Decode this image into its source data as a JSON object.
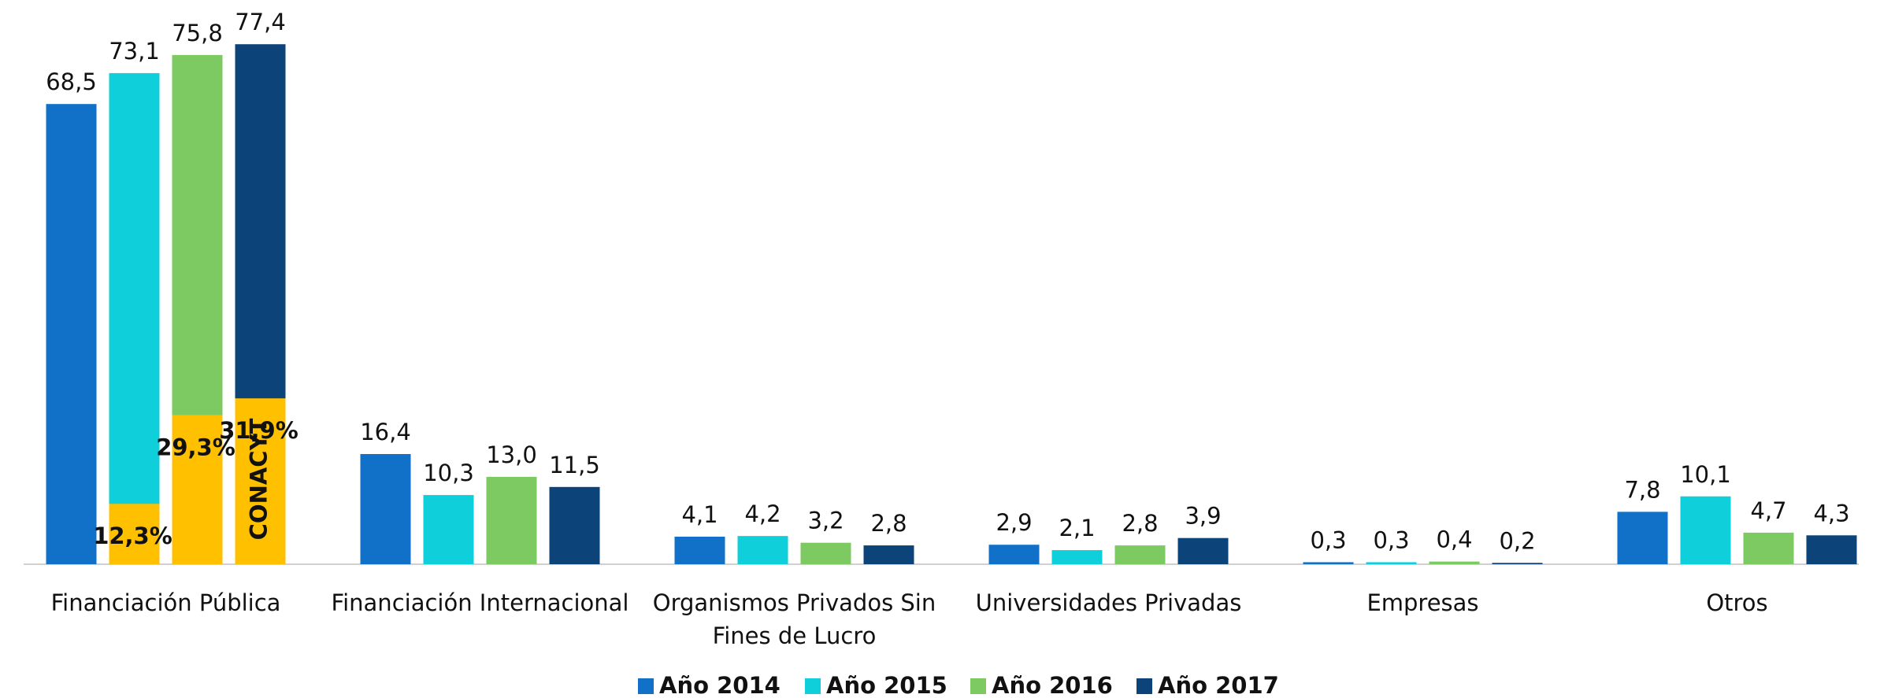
{
  "chart_data": {
    "type": "bar",
    "categories": [
      "Financiación Pública",
      "Financiación Internacional",
      "Organismos Privados Sin Fines de Lucro",
      "Universidades Privadas",
      "Empresas",
      "Otros"
    ],
    "series": [
      {
        "name": "Año 2014",
        "color": "#1170c8",
        "values": [
          68.5,
          16.4,
          4.1,
          2.9,
          0.3,
          7.8
        ],
        "value_labels": [
          "68,5",
          "16,4",
          "4,1",
          "2,9",
          "0,3",
          "7,8"
        ]
      },
      {
        "name": "Año 2015",
        "color": "#0fd0da",
        "values": [
          73.1,
          10.3,
          4.2,
          2.1,
          0.3,
          10.1
        ],
        "value_labels": [
          "73,1",
          "10,3",
          "4,2",
          "2,1",
          "0,3",
          "10,1"
        ]
      },
      {
        "name": "Año 2016",
        "color": "#7dca62",
        "values": [
          75.8,
          13.0,
          3.2,
          2.8,
          0.4,
          4.7
        ],
        "value_labels": [
          "75,8",
          "13,0",
          "3,2",
          "2,8",
          "0,4",
          "4,7"
        ]
      },
      {
        "name": "Año 2017",
        "color": "#0c4379",
        "values": [
          77.4,
          11.5,
          2.8,
          3.9,
          0.2,
          4.3
        ],
        "value_labels": [
          "77,4",
          "11,5",
          "2,8",
          "3,9",
          "0,2",
          "4,3"
        ]
      }
    ],
    "overlay": {
      "name": "CONACYT",
      "color": "#ffc000",
      "values": [
        null,
        12.3,
        29.3,
        31.9
      ],
      "value_labels": [
        null,
        "12,3%",
        "29,3%",
        "31,9%"
      ]
    },
    "ylim": [
      0,
      80
    ],
    "legend": "bottom"
  }
}
